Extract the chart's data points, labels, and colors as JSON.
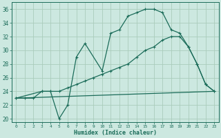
{
  "xlabel": "Humidex (Indice chaleur)",
  "bg_color": "#cce8e0",
  "grid_color": "#aaccbb",
  "line_color": "#1a6b58",
  "xlim": [
    -0.5,
    23.5
  ],
  "ylim": [
    19.5,
    37.0
  ],
  "xticks": [
    0,
    1,
    2,
    3,
    4,
    5,
    6,
    7,
    8,
    9,
    10,
    11,
    12,
    13,
    14,
    15,
    16,
    17,
    18,
    19,
    20,
    21,
    22,
    23
  ],
  "yticks": [
    20,
    22,
    24,
    26,
    28,
    30,
    32,
    34,
    36
  ],
  "line1_x": [
    0,
    1,
    2,
    3,
    4,
    5,
    6,
    7,
    8,
    10,
    11,
    12,
    13,
    14,
    15,
    16,
    17,
    18,
    19,
    20,
    21,
    22,
    23
  ],
  "line1_y": [
    23,
    23,
    23,
    24,
    24,
    20,
    22,
    29,
    31,
    27,
    32.5,
    33,
    35,
    35.5,
    36,
    36,
    35.5,
    33,
    32.5,
    30.5,
    28,
    25,
    24
  ],
  "line2_x": [
    0,
    3,
    4,
    5,
    6,
    7,
    8,
    9,
    10,
    11,
    12,
    13,
    14,
    15,
    16,
    17,
    18,
    19,
    20,
    21,
    22,
    23
  ],
  "line2_y": [
    23,
    24,
    24,
    24,
    24.5,
    25,
    25.5,
    26,
    26.5,
    27,
    27.5,
    28,
    29,
    30,
    30.5,
    31.5,
    32,
    32,
    30.5,
    28,
    25,
    24
  ],
  "line3_x": [
    0,
    23
  ],
  "line3_y": [
    23,
    24
  ]
}
